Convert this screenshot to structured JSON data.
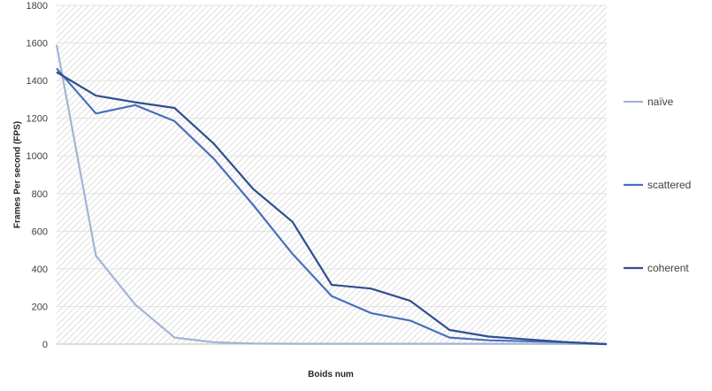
{
  "chart_data": {
    "type": "line",
    "title": "",
    "xlabel": "Boids num",
    "ylabel": "Frames Per second (FPS)",
    "ylim": [
      0,
      1800
    ],
    "y_ticks": [
      0,
      200,
      400,
      600,
      800,
      1000,
      1200,
      1400,
      1600,
      1800
    ],
    "y_tick_labels": [
      "0",
      "200",
      "400",
      "600",
      "800",
      "1000",
      "1200",
      "1400",
      "1600",
      "1800"
    ],
    "grid": true,
    "legend_position": "right",
    "x_points": 15,
    "series": [
      {
        "name": "naïve",
        "color": "#a3b4d6",
        "values": [
          1590,
          470,
          210,
          35,
          10,
          3,
          2,
          2,
          2,
          2,
          2,
          2,
          2,
          1,
          0
        ]
      },
      {
        "name": "scattered",
        "color": "#4a6fba",
        "values": [
          1465,
          1225,
          1270,
          1185,
          985,
          740,
          480,
          255,
          165,
          125,
          35,
          20,
          15,
          10,
          0
        ]
      },
      {
        "name": "coherent",
        "color": "#2f4f8f",
        "values": [
          1445,
          1320,
          1285,
          1255,
          1065,
          825,
          650,
          315,
          295,
          230,
          75,
          40,
          25,
          10,
          0
        ]
      }
    ]
  }
}
